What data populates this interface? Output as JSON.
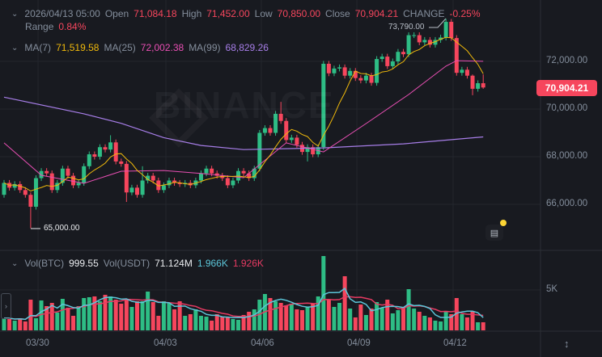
{
  "header": {
    "datetime": "2026/04/13 05:00",
    "open_label": "Open",
    "open": "71,084.18",
    "high_label": "High",
    "high": "71,452.00",
    "low_label": "Low",
    "low": "70,850.00",
    "close_label": "Close",
    "close": "70,904.21",
    "change_label": "CHANGE",
    "change": "-0.25%",
    "range_label": "Range",
    "range": "0.84%"
  },
  "ma_legend": {
    "ma7_label": "MA(7)",
    "ma7": "71,519.58",
    "ma25_label": "MA(25)",
    "ma25": "72,002.38",
    "ma99_label": "MA(99)",
    "ma99": "68,829.26"
  },
  "volume_legend": {
    "btc_label": "Vol(BTC)",
    "btc": "999.55",
    "usdt_label": "Vol(USDT)",
    "usdt": "71.124M",
    "ma_short": "1.966K",
    "ma_long": "1.926K"
  },
  "watermark": "BINANCE",
  "price_axis": [
    "72,000.00",
    "70,000.00",
    "68,000.00",
    "66,000.00"
  ],
  "volume_axis": [
    "5K"
  ],
  "current_price": "70,904.21",
  "high_marker": "73,790.00",
  "low_marker": "65,000.00",
  "dates": [
    "03/30",
    "04/03",
    "04/06",
    "04/09",
    "04/12"
  ],
  "colors": {
    "up": "#2ebd85",
    "down": "#f6465d",
    "ma7": "#f0b90b",
    "ma25": "#e84fb3",
    "ma99": "#a77ee8",
    "vol_ma_short": "#5cc6d9",
    "vol_ma_long": "#e63a62",
    "background": "#181a20"
  },
  "chart_data": {
    "type": "candlestick",
    "interval_note": "",
    "closes": [
      66900,
      66700,
      66850,
      66600,
      66400,
      65900,
      67100,
      67400,
      67300,
      66600,
      66900,
      67500,
      67200,
      66800,
      66900,
      67600,
      68100,
      68000,
      68400,
      68300,
      68600,
      67800,
      67700,
      66500,
      66700,
      66400,
      67000,
      67200,
      67000,
      66600,
      66800,
      67000,
      66900,
      66850,
      66900,
      66800,
      67000,
      67300,
      67500,
      67300,
      67200,
      67100,
      66800,
      67000,
      67400,
      67300,
      67100,
      67500,
      69000,
      69200,
      69000,
      69800,
      69500,
      68700,
      68800,
      68500,
      68200,
      68400,
      68100,
      68400,
      71900,
      71500,
      71700,
      71750,
      71400,
      71600,
      71300,
      71200,
      71400,
      71100,
      72100,
      72200,
      71800,
      72000,
      72400,
      72300,
      73100,
      73100,
      72800,
      72900,
      72700,
      72900,
      73000,
      73660,
      72980,
      71520,
      71650,
      71400,
      70850,
      71084.18,
      70904.21
    ],
    "opens_first": 66400,
    "wick_highs": {
      "5": 66500,
      "20": 68900,
      "26": 67600,
      "52": 70300,
      "83": 73790,
      "88": 71450,
      "90": 71452
    },
    "wick_lows": {
      "5": 65000,
      "23": 66100,
      "57": 67800,
      "88": 70580,
      "90": 70850
    },
    "volumes": [
      1500,
      1500,
      1200,
      1500,
      1100,
      3800,
      1500,
      3700,
      3000,
      3400,
      2200,
      3900,
      2800,
      1800,
      3000,
      4000,
      4100,
      4200,
      3600,
      4400,
      4200,
      3800,
      3300,
      3800,
      2900,
      3600,
      3600,
      4800,
      3500,
      1800,
      3600,
      3400,
      2600,
      3600,
      1800,
      2000,
      2600,
      1800,
      1700,
      1200,
      2000,
      1700,
      1600,
      1400,
      1300,
      1900,
      2300,
      2600,
      3800,
      4500,
      4000,
      3600,
      3400,
      3100,
      3300,
      2600,
      2500,
      2900,
      3300,
      4200,
      9200,
      3800,
      2900,
      3400,
      6700,
      2700,
      1600,
      3200,
      1900,
      2700,
      3500,
      2800,
      3800,
      2100,
      2500,
      2900,
      5100,
      2700,
      2300,
      1800,
      1600,
      1200,
      1100,
      2300,
      2000,
      4000,
      2000,
      1600,
      2300,
      1000,
      1000
    ],
    "ma25": [
      [
        0,
        68580
      ],
      [
        7,
        67220
      ],
      [
        15,
        66880
      ],
      [
        22,
        67390
      ],
      [
        30,
        67420
      ],
      [
        37,
        67300
      ],
      [
        45,
        67120
      ],
      [
        53,
        68580
      ],
      [
        60,
        68200
      ],
      [
        68,
        69390
      ],
      [
        76,
        70610
      ],
      [
        83,
        71800
      ],
      [
        85,
        72030
      ],
      [
        90,
        72002.38
      ]
    ],
    "ma99": [
      [
        0,
        70500
      ],
      [
        15,
        69800
      ],
      [
        22,
        69400
      ],
      [
        30,
        68800
      ],
      [
        37,
        68470
      ],
      [
        45,
        68300
      ],
      [
        60,
        68370
      ],
      [
        75,
        68540
      ],
      [
        90,
        68829.26
      ]
    ],
    "ylim": [
      64500,
      74200
    ],
    "volume_ylim": [
      0,
      9500
    ]
  }
}
